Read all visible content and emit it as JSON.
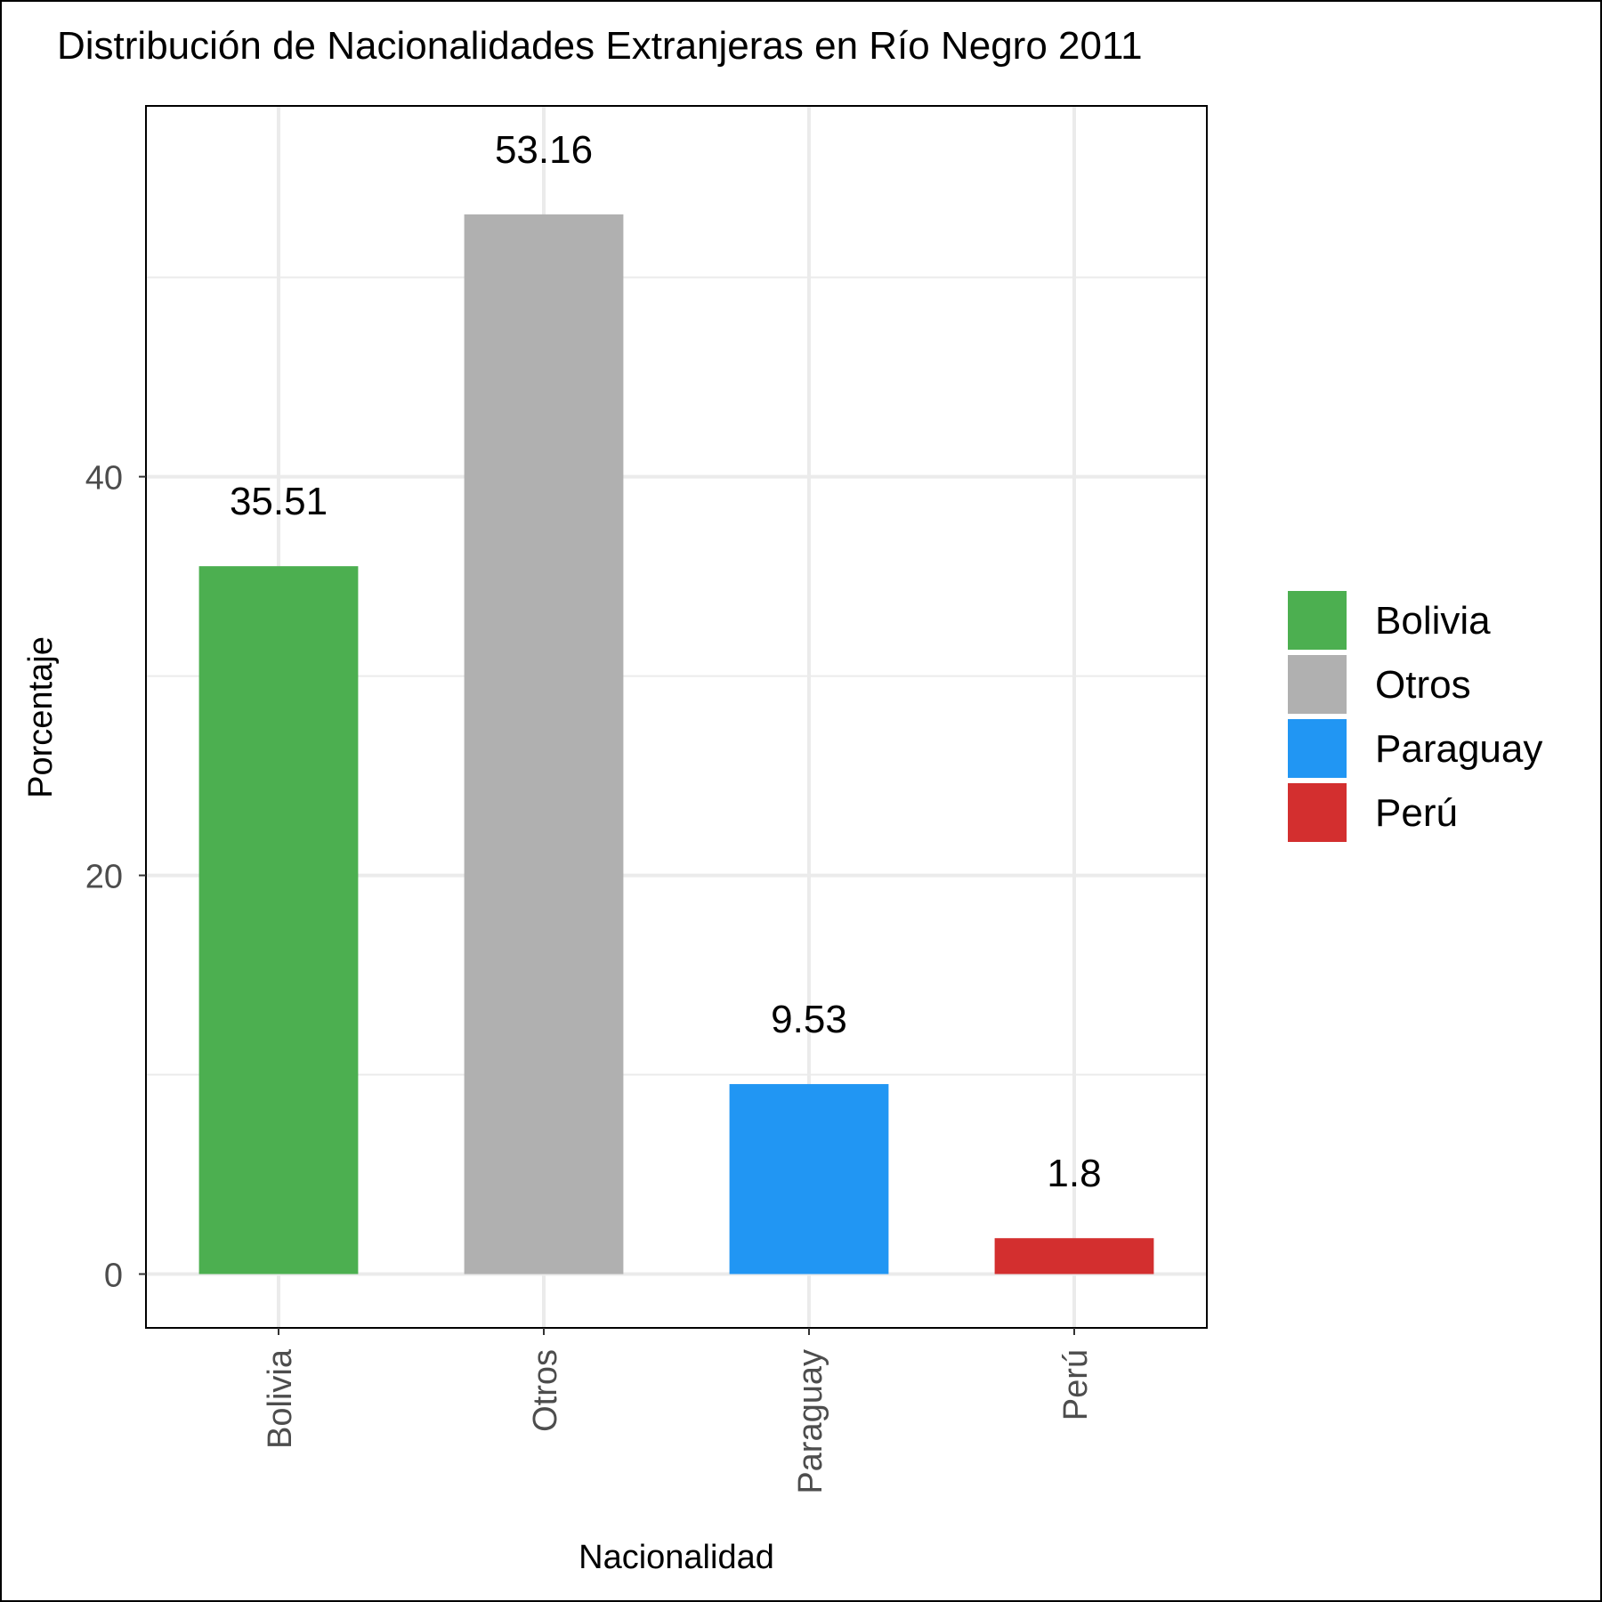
{
  "chart_data": {
    "type": "bar",
    "title": "Distribución de Nacionalidades Extranjeras en Río Negro 2011",
    "xlabel": "Nacionalidad",
    "ylabel": "Porcentaje",
    "categories": [
      "Bolivia",
      "Otros",
      "Paraguay",
      "Perú"
    ],
    "values": [
      35.51,
      53.16,
      9.53,
      1.8
    ],
    "value_labels": [
      "35.51",
      "53.16",
      "9.53",
      "1.8"
    ],
    "colors": [
      "#4caf50",
      "#b0b0b0",
      "#2196f3",
      "#d32f2f"
    ],
    "ylim": [
      -2.7,
      58.6
    ],
    "yticks": [
      0,
      20,
      40
    ],
    "ytick_labels": [
      "0",
      "20",
      "40"
    ],
    "grid": true,
    "legend": {
      "position": "right",
      "entries": [
        "Bolivia",
        "Otros",
        "Paraguay",
        "Perú"
      ]
    }
  }
}
